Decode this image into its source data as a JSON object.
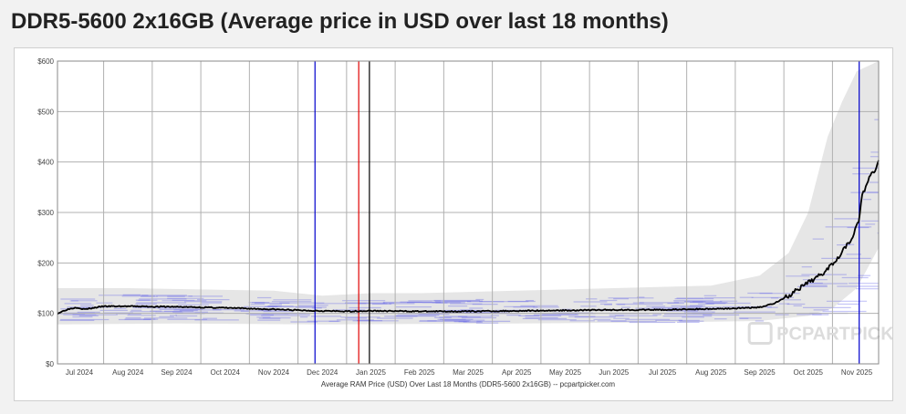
{
  "page": {
    "title": "DDR5-5600 2x16GB (Average price in USD over last 18 months)"
  },
  "chart_data": {
    "type": "line",
    "title": "DDR5-5600 2x16GB (Average price in USD over last 18 months)",
    "xlabel": "Average RAM Price (USD) Over Last 18 Months (DDR5-5600 2x16GB) -- pcpartpicker.com",
    "ylabel": "",
    "ylim": [
      0,
      600
    ],
    "y_ticks": [
      0,
      100,
      200,
      300,
      400,
      500,
      600
    ],
    "y_tick_labels": [
      "$0",
      "$100",
      "$200",
      "$300",
      "$400",
      "$500",
      "$600"
    ],
    "x_months": [
      "Jul 2024",
      "Aug 2024",
      "Sep 2024",
      "Oct 2024",
      "Nov 2024",
      "Dec 2024",
      "Jan 2025",
      "Feb 2025",
      "Mar 2025",
      "Apr 2025",
      "May 2025",
      "Jun 2025",
      "Jul 2025",
      "Aug 2025",
      "Sep 2025",
      "Oct 2025",
      "Nov 2025"
    ],
    "x_range_months": [
      -0.45,
      16.45
    ],
    "grid": true,
    "watermark": "PCPARTPICKER",
    "series": [
      {
        "name": "Average price",
        "color": "#000000",
        "points": [
          [
            -0.45,
            100
          ],
          [
            -0.25,
            108
          ],
          [
            -0.05,
            112
          ],
          [
            0.1,
            108
          ],
          [
            0.3,
            111
          ],
          [
            0.5,
            114
          ],
          [
            1.0,
            114
          ],
          [
            2.0,
            113
          ],
          [
            3.0,
            111
          ],
          [
            4.0,
            108
          ],
          [
            4.6,
            106
          ],
          [
            5.0,
            105
          ],
          [
            5.5,
            104
          ],
          [
            6.0,
            105
          ],
          [
            7.0,
            104
          ],
          [
            8.0,
            104
          ],
          [
            9.0,
            105
          ],
          [
            10.0,
            106
          ],
          [
            11.0,
            107
          ],
          [
            12.0,
            107
          ],
          [
            13.0,
            109
          ],
          [
            13.5,
            110
          ],
          [
            14.0,
            112
          ],
          [
            14.3,
            120
          ],
          [
            14.6,
            135
          ],
          [
            15.0,
            160
          ],
          [
            15.3,
            180
          ],
          [
            15.6,
            210
          ],
          [
            15.9,
            250
          ],
          [
            16.05,
            285
          ],
          [
            16.1,
            330
          ],
          [
            16.2,
            355
          ],
          [
            16.3,
            375
          ],
          [
            16.4,
            390
          ],
          [
            16.45,
            400
          ]
        ]
      }
    ],
    "range_band": {
      "color": "#e6e6e6",
      "upper": [
        [
          -0.45,
          150
        ],
        [
          1.0,
          150
        ],
        [
          4.0,
          145
        ],
        [
          5.0,
          135
        ],
        [
          6.0,
          140
        ],
        [
          7.0,
          140
        ],
        [
          9.0,
          145
        ],
        [
          11.0,
          150
        ],
        [
          13.0,
          155
        ],
        [
          14.0,
          175
        ],
        [
          14.6,
          220
        ],
        [
          15.0,
          300
        ],
        [
          15.4,
          450
        ],
        [
          15.7,
          520
        ],
        [
          16.0,
          580
        ],
        [
          16.45,
          600
        ]
      ],
      "lower": [
        [
          -0.45,
          78
        ],
        [
          2.0,
          80
        ],
        [
          5.0,
          78
        ],
        [
          9.0,
          80
        ],
        [
          12.0,
          82
        ],
        [
          14.0,
          85
        ],
        [
          15.0,
          95
        ],
        [
          15.5,
          110
        ],
        [
          16.0,
          150
        ],
        [
          16.45,
          230
        ]
      ]
    },
    "vertical_markers": [
      {
        "name": "blue-marker-1",
        "color": "#0000cc",
        "month": 4.85
      },
      {
        "name": "red-marker",
        "color": "#e00000",
        "month": 5.75
      },
      {
        "name": "black-marker",
        "color": "#000000",
        "month": 5.97
      },
      {
        "name": "blue-marker-2",
        "color": "#0000cc",
        "month": 16.05
      }
    ]
  }
}
